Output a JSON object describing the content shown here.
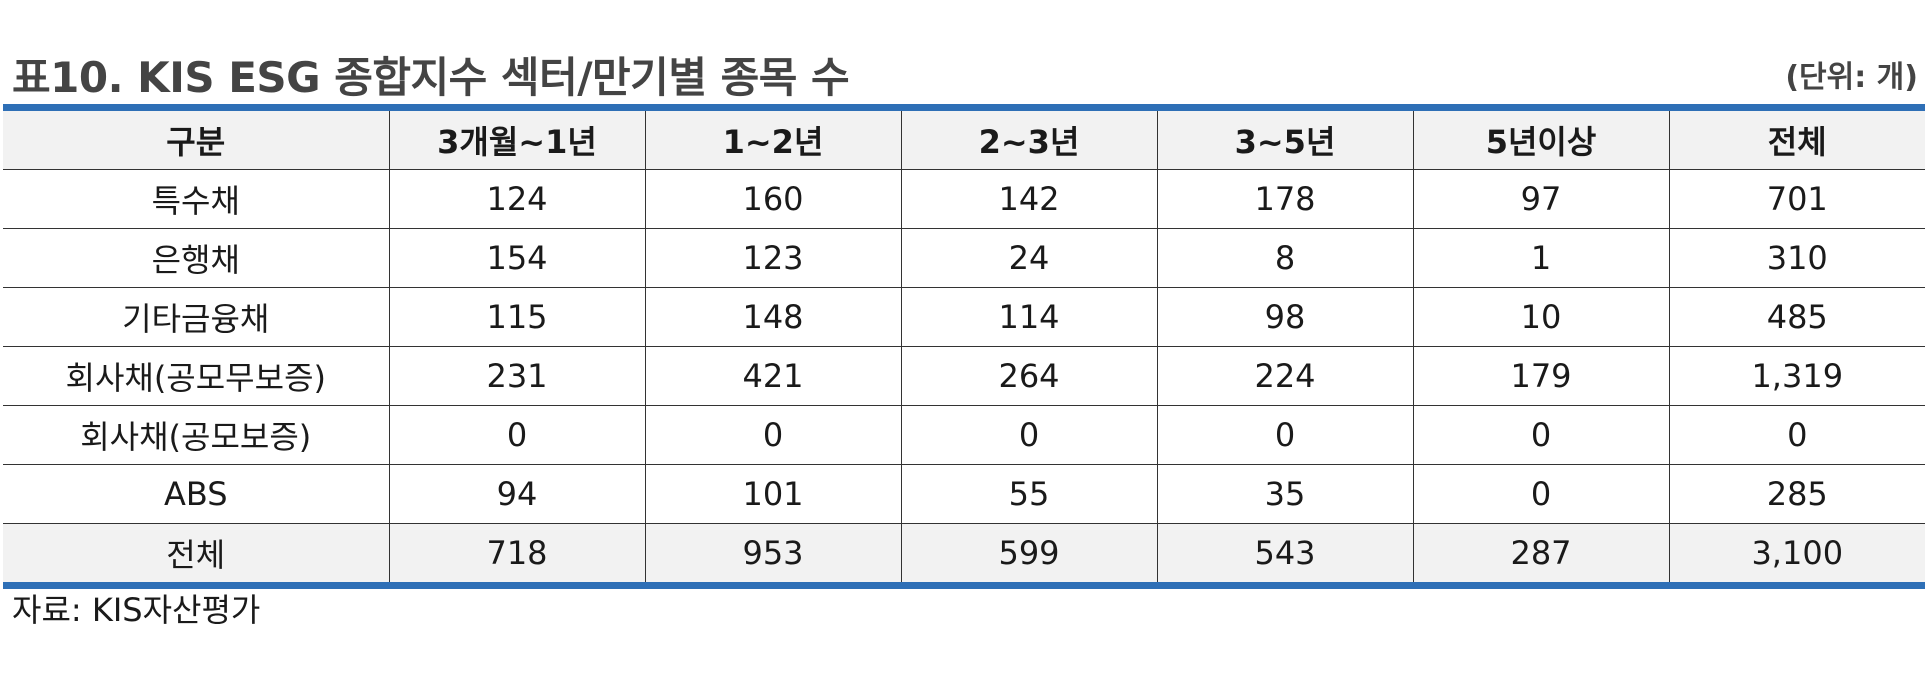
{
  "title": "표10. KIS ESG 종합지수 섹터/만기별 종목 수",
  "unit": "(단위: 개)",
  "table": {
    "headers": [
      "구분",
      "3개월~1년",
      "1~2년",
      "2~3년",
      "3~5년",
      "5년이상",
      "전체"
    ],
    "rows": [
      [
        "특수채",
        "124",
        "160",
        "142",
        "178",
        "97",
        "701"
      ],
      [
        "은행채",
        "154",
        "123",
        "24",
        "8",
        "1",
        "310"
      ],
      [
        "기타금융채",
        "115",
        "148",
        "114",
        "98",
        "10",
        "485"
      ],
      [
        "회사채(공모무보증)",
        "231",
        "421",
        "264",
        "224",
        "179",
        "1,319"
      ],
      [
        "회사채(공모보증)",
        "0",
        "0",
        "0",
        "0",
        "0",
        "0"
      ],
      [
        "ABS",
        "94",
        "101",
        "55",
        "35",
        "0",
        "285"
      ]
    ],
    "total": [
      "전체",
      "718",
      "953",
      "599",
      "543",
      "287",
      "3,100"
    ]
  },
  "source": "자료: KIS자산평가",
  "colors": {
    "rule": "#2e6fb6",
    "header_bg": "#f2f2f2",
    "title": "#444444"
  }
}
